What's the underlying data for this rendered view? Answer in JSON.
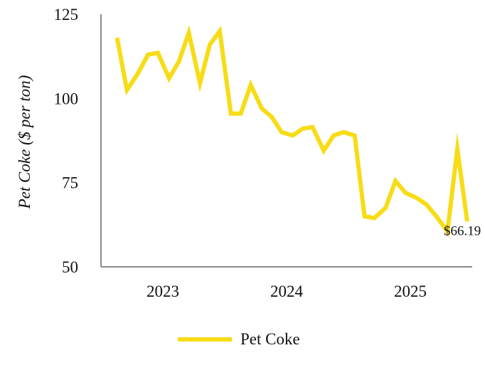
{
  "chart_data": {
    "type": "line",
    "title": "",
    "xlabel": "",
    "ylabel": "Pet Coke ($ per ton)",
    "ylim": [
      50,
      125
    ],
    "yticks": [
      50,
      75,
      100,
      125
    ],
    "xlim": [
      2022.62,
      2025.62
    ],
    "xticks": [
      {
        "label": "2023",
        "value": 2023.12
      },
      {
        "label": "2024",
        "value": 2024.12
      },
      {
        "label": "2025",
        "value": 2025.12
      }
    ],
    "grid": false,
    "legend": "bottom-center",
    "series": [
      {
        "name": "Pet Coke",
        "color": "#f7dc16",
        "x": [
          2022.75,
          2022.83,
          2022.92,
          2023.0,
          2023.08,
          2023.17,
          2023.25,
          2023.33,
          2023.42,
          2023.5,
          2023.58,
          2023.67,
          2023.75,
          2023.83,
          2023.92,
          2024.0,
          2024.08,
          2024.17,
          2024.25,
          2024.33,
          2024.42,
          2024.5,
          2024.58,
          2024.67,
          2024.75,
          2024.83,
          2024.92,
          2025.0,
          2025.08,
          2025.17,
          2025.25,
          2025.33,
          2025.42,
          2025.5,
          2025.58
        ],
        "y": [
          118,
          102.5,
          107.5,
          113,
          113.5,
          106,
          111,
          119.5,
          104.5,
          116,
          120,
          95.5,
          95.5,
          104,
          97,
          94.5,
          90,
          89,
          91,
          91.5,
          84.5,
          89,
          90,
          89,
          65,
          64.5,
          67.5,
          75.5,
          72,
          70.5,
          68.5,
          65,
          60.5,
          85,
          63.5
        ]
      }
    ],
    "annotations": [
      {
        "text": "$66.19",
        "x": 2025.62,
        "y": 66.19
      }
    ]
  }
}
